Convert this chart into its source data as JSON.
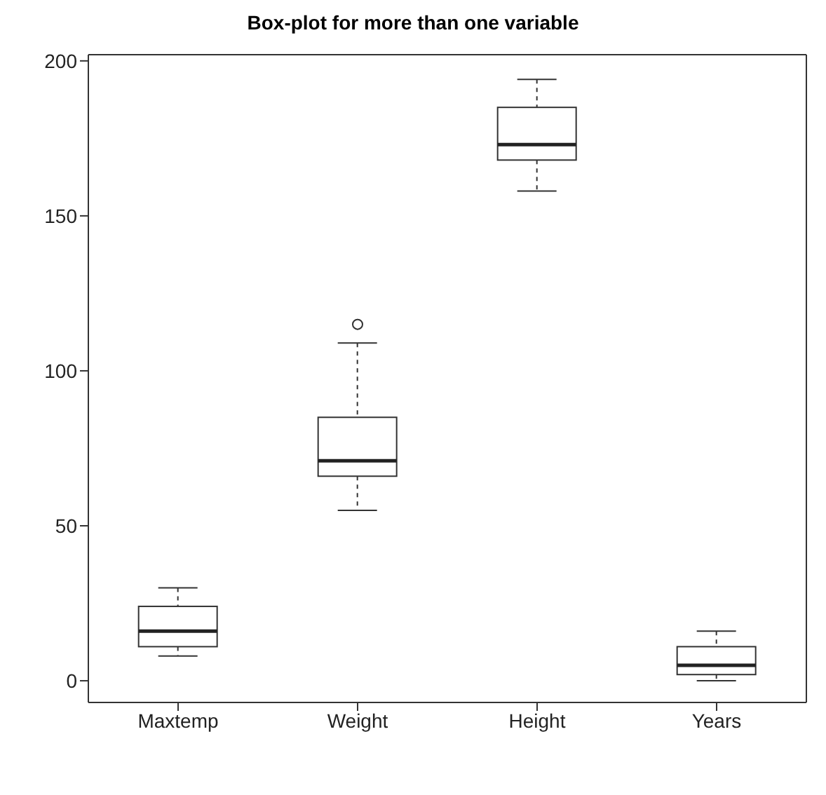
{
  "chart_data": {
    "type": "box",
    "title": "Box-plot for more than one variable",
    "categories": [
      "Maxtemp",
      "Weight",
      "Height",
      "Years"
    ],
    "boxes": [
      {
        "low": 8,
        "q1": 11,
        "median": 16,
        "q3": 24,
        "high": 30
      },
      {
        "low": 55,
        "q1": 66,
        "median": 71,
        "q3": 85,
        "high": 109,
        "outliers": [
          115
        ]
      },
      {
        "low": 158,
        "q1": 168,
        "median": 173,
        "q3": 185,
        "high": 194
      },
      {
        "low": 0,
        "q1": 2,
        "median": 5,
        "q3": 11,
        "high": 16
      }
    ],
    "ylim": [
      -7,
      202
    ],
    "yticks": [
      0,
      50,
      100,
      150,
      200
    ],
    "grid": false
  }
}
